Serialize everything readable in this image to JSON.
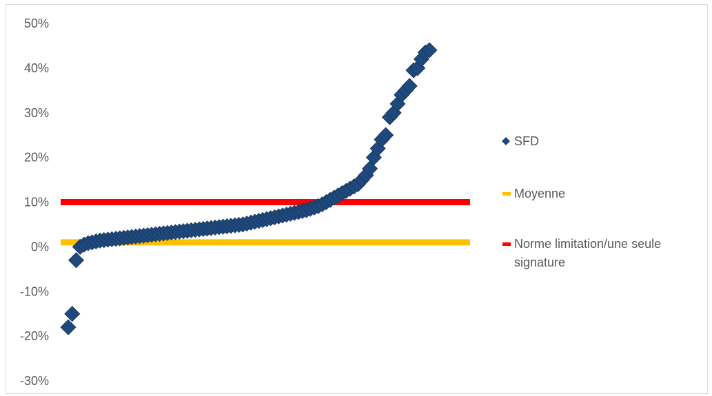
{
  "chart_data": {
    "type": "scatter",
    "title": "",
    "xlabel": "",
    "ylabel": "",
    "ylim": [
      -0.3,
      0.5
    ],
    "yticks": [
      -0.3,
      -0.2,
      -0.1,
      0.0,
      0.1,
      0.2,
      0.3,
      0.4,
      0.5
    ],
    "ytick_labels": [
      "-30%",
      "-20%",
      "-10%",
      "0%",
      "10%",
      "20%",
      "30%",
      "40%",
      "50%"
    ],
    "x_axis_labels": "none",
    "grid": false,
    "legend_position": "right",
    "series": [
      {
        "name": "SFD",
        "kind": "scatter",
        "marker": "diamond",
        "color": "#1f497d",
        "points": [
          [
            0,
            -0.18
          ],
          [
            1,
            -0.15
          ],
          [
            2,
            -0.03
          ],
          [
            3,
            0.0
          ],
          [
            4,
            0.005
          ],
          [
            5,
            0.008
          ],
          [
            6,
            0.01
          ],
          [
            7,
            0.012
          ],
          [
            8,
            0.014
          ],
          [
            9,
            0.015
          ],
          [
            10,
            0.016
          ],
          [
            11,
            0.017
          ],
          [
            12,
            0.018
          ],
          [
            13,
            0.019
          ],
          [
            14,
            0.02
          ],
          [
            15,
            0.021
          ],
          [
            16,
            0.022
          ],
          [
            17,
            0.023
          ],
          [
            18,
            0.024
          ],
          [
            19,
            0.025
          ],
          [
            20,
            0.026
          ],
          [
            21,
            0.027
          ],
          [
            22,
            0.028
          ],
          [
            23,
            0.029
          ],
          [
            24,
            0.03
          ],
          [
            25,
            0.031
          ],
          [
            26,
            0.032
          ],
          [
            27,
            0.033
          ],
          [
            28,
            0.034
          ],
          [
            29,
            0.035
          ],
          [
            30,
            0.036
          ],
          [
            31,
            0.037
          ],
          [
            32,
            0.038
          ],
          [
            33,
            0.039
          ],
          [
            34,
            0.04
          ],
          [
            35,
            0.041
          ],
          [
            36,
            0.042
          ],
          [
            37,
            0.043
          ],
          [
            38,
            0.044
          ],
          [
            39,
            0.045
          ],
          [
            40,
            0.046
          ],
          [
            41,
            0.047
          ],
          [
            42,
            0.048
          ],
          [
            43,
            0.049
          ],
          [
            44,
            0.05
          ],
          [
            45,
            0.052
          ],
          [
            46,
            0.054
          ],
          [
            47,
            0.056
          ],
          [
            48,
            0.058
          ],
          [
            49,
            0.06
          ],
          [
            50,
            0.062
          ],
          [
            51,
            0.064
          ],
          [
            52,
            0.066
          ],
          [
            53,
            0.068
          ],
          [
            54,
            0.07
          ],
          [
            55,
            0.072
          ],
          [
            56,
            0.074
          ],
          [
            57,
            0.076
          ],
          [
            58,
            0.078
          ],
          [
            59,
            0.08
          ],
          [
            60,
            0.082
          ],
          [
            61,
            0.085
          ],
          [
            62,
            0.088
          ],
          [
            63,
            0.091
          ],
          [
            64,
            0.095
          ],
          [
            65,
            0.1
          ],
          [
            66,
            0.105
          ],
          [
            67,
            0.11
          ],
          [
            68,
            0.115
          ],
          [
            69,
            0.12
          ],
          [
            70,
            0.125
          ],
          [
            71,
            0.13
          ],
          [
            72,
            0.135
          ],
          [
            73,
            0.14
          ],
          [
            74,
            0.15
          ],
          [
            75,
            0.16
          ],
          [
            76,
            0.175
          ],
          [
            77,
            0.2
          ],
          [
            78,
            0.22
          ],
          [
            79,
            0.24
          ],
          [
            80,
            0.25
          ],
          [
            81,
            0.29
          ],
          [
            82,
            0.3
          ],
          [
            83,
            0.32
          ],
          [
            84,
            0.34
          ],
          [
            85,
            0.35
          ],
          [
            86,
            0.36
          ],
          [
            87,
            0.395
          ],
          [
            88,
            0.4
          ],
          [
            89,
            0.42
          ],
          [
            90,
            0.435
          ],
          [
            91,
            0.44
          ]
        ]
      },
      {
        "name": "Moyenne",
        "kind": "hline",
        "color": "#ffc000",
        "y": 0.01
      },
      {
        "name": "Norme limitation/une seule signature",
        "kind": "hline",
        "color": "#ff0000",
        "y": 0.1
      }
    ]
  },
  "legend": {
    "items": [
      {
        "name": "SFD",
        "lines": [
          "SFD"
        ],
        "color": "#1f497d",
        "symbol": "diamond-icon"
      },
      {
        "name": "Moyenne",
        "lines": [
          "Moyenne"
        ],
        "color": "#ffc000",
        "symbol": "line-icon"
      },
      {
        "name": "Norme limitation/une seule signature",
        "lines": [
          "Norme limitation/une seule",
          "signature"
        ],
        "color": "#ff0000",
        "symbol": "line-icon"
      }
    ]
  }
}
